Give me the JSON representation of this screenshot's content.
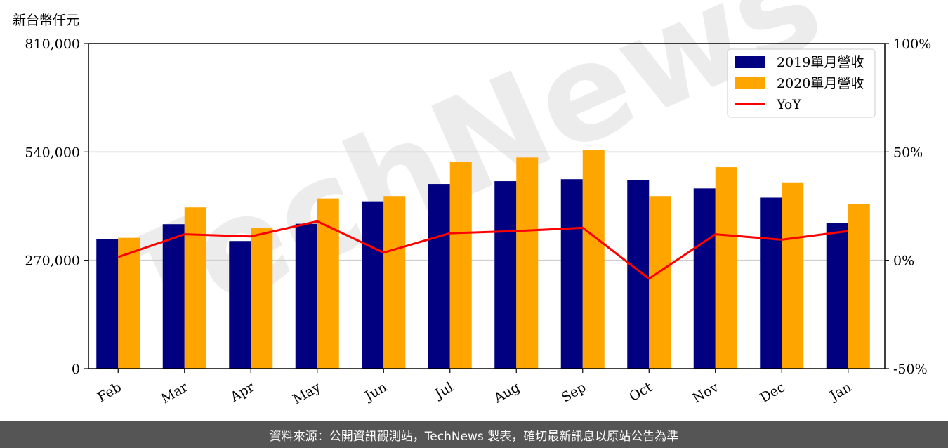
{
  "unit_label": "新台幣仟元",
  "watermark": "TechNews",
  "footer_text": "資料來源：公開資訊觀測站，TechNews 製表，確切最新訊息以原站公告為準",
  "chart_data": {
    "type": "bar",
    "categories": [
      "Feb",
      "Mar",
      "Apr",
      "May",
      "Jun",
      "Jul",
      "Aug",
      "Sep",
      "Oct",
      "Nov",
      "Dec",
      "Jan"
    ],
    "series": [
      {
        "name": "2019單月營收",
        "type": "bar",
        "axis": "left",
        "color": "#000080",
        "values": [
          322000,
          360000,
          318000,
          361000,
          417000,
          460000,
          467000,
          472000,
          469000,
          449000,
          426000,
          363000
        ]
      },
      {
        "name": "2020單月營收",
        "type": "bar",
        "axis": "left",
        "color": "#FFA500",
        "values": [
          326000,
          402000,
          351000,
          424000,
          430000,
          516000,
          526000,
          545000,
          430000,
          502000,
          464000,
          411000
        ]
      },
      {
        "name": "YoY",
        "type": "line",
        "axis": "right",
        "color": "#FF0000",
        "values": [
          1.5,
          12,
          11,
          18,
          3.5,
          12.5,
          13.5,
          15,
          -8.5,
          12,
          9.5,
          13.5
        ]
      }
    ],
    "y_left": {
      "lim": [
        0,
        810000
      ],
      "ticks": [
        "0",
        "270,000",
        "540,000",
        "810,000"
      ],
      "tick_values": [
        0,
        270000,
        540000,
        810000
      ]
    },
    "y_right": {
      "lim": [
        -50,
        100
      ],
      "ticks": [
        "-50%",
        "0%",
        "50%",
        "100%"
      ],
      "tick_values": [
        -50,
        0,
        50,
        100
      ]
    },
    "grid": "horizontal",
    "legend_position": "top-right"
  }
}
